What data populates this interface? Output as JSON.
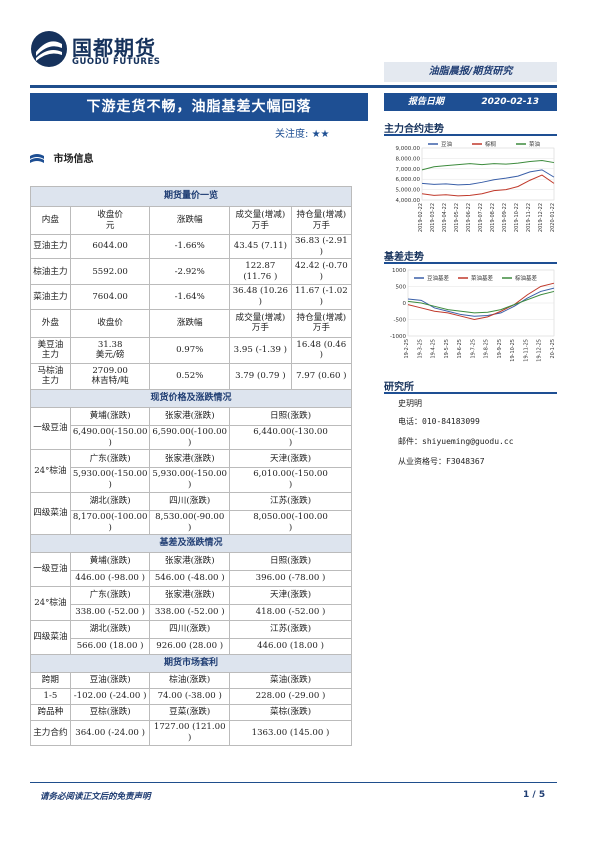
{
  "brand": {
    "name_cn": "国都期货",
    "name_en": "GUODU FUTURES"
  },
  "series_label": "油脂晨报/期货研究",
  "title": "下游走货不畅，油脂基差大幅回落",
  "report_date": {
    "label": "报告日期",
    "value": "2020-02-13"
  },
  "attention": {
    "label": "关注度:",
    "stars": "★★"
  },
  "section_title": "市场信息",
  "futures_table": {
    "title": "期货量价一览",
    "domestic_header": [
      "内盘",
      "收盘价\n元",
      "涨跌幅",
      "成交量(增减)\n万手",
      "持仓量(增减)\n万手"
    ],
    "domestic_rows": [
      [
        "豆油主力",
        "6044.00",
        "-1.66%",
        "43.45 (7.11)",
        "36.83 (-2.91 )"
      ],
      [
        "棕油主力",
        "5592.00",
        "-2.92%",
        "122.87\n(11.76 )",
        "42.42 (-0.70 )"
      ],
      [
        "菜油主力",
        "7604.00",
        "-1.64%",
        "36.48 (10.26 )",
        "11.67 (-1.02 )"
      ]
    ],
    "foreign_header": [
      "外盘",
      "收盘价",
      "涨跌幅",
      "成交量(增减)\n万手",
      "持仓量(增减)\n万手"
    ],
    "foreign_rows": [
      [
        "美豆油\n主力",
        "31.38\n美元/磅",
        "0.97%",
        "3.95 (-1.39 )",
        "16.48 (0.46 )"
      ],
      [
        "马棕油\n主力",
        "2709.00\n林吉特/吨",
        "0.52%",
        "3.79 (0.79 )",
        "7.97 (0.60 )"
      ]
    ]
  },
  "spot_table": {
    "title": "现货价格及涨跌情况",
    "groups": [
      {
        "name": "一级豆油",
        "regions": [
          "黄埔(涨跌)",
          "张家港(涨跌)",
          "日照(涨跌)"
        ],
        "values": [
          "6,490.00(-150.00 )",
          "6,590.00(-100.00\n)",
          "6,440.00(-130.00\n)"
        ]
      },
      {
        "name": "24°棕油",
        "regions": [
          "广东(涨跌)",
          "张家港(涨跌)",
          "天津(涨跌)"
        ],
        "values": [
          "5,930.00(-150.00 )",
          "5,930.00(-150.00\n)",
          "6,010.00(-150.00\n)"
        ]
      },
      {
        "name": "四级菜油",
        "regions": [
          "湖北(涨跌)",
          "四川(涨跌)",
          "江苏(涨跌)"
        ],
        "values": [
          "8,170.00(-100.00 )",
          "8,530.00(-90.00 )",
          "8,050.00(-100.00\n)"
        ]
      }
    ]
  },
  "basis_table": {
    "title": "基差及涨跌情况",
    "groups": [
      {
        "name": "一级豆油",
        "regions": [
          "黄埔(涨跌)",
          "张家港(涨跌)",
          "日照(涨跌)"
        ],
        "values": [
          "446.00 (-98.00 )",
          "546.00 (-48.00 )",
          "396.00 (-78.00 )"
        ]
      },
      {
        "name": "24°棕油",
        "regions": [
          "广东(涨跌)",
          "张家港(涨跌)",
          "天津(涨跌)"
        ],
        "values": [
          "338.00 (-52.00 )",
          "338.00 (-52.00 )",
          "418.00 (-52.00 )"
        ]
      },
      {
        "name": "四级菜油",
        "regions": [
          "湖北(涨跌)",
          "四川(涨跌)",
          "江苏(涨跌)"
        ],
        "values": [
          "566.00 (18.00 )",
          "926.00 (28.00 )",
          "446.00 (18.00 )"
        ]
      }
    ]
  },
  "spread_table": {
    "title": "期货市场套利",
    "rows": [
      [
        "跨期",
        "豆油(涨跌)",
        "棕油(涨跌)",
        "菜油(涨跌)"
      ],
      [
        "1-5",
        "-102.00 (-24.00 )",
        "74.00 (-38.00 )",
        "228.00  (-29.00 )"
      ],
      [
        "跨品种",
        "豆棕(涨跌)",
        "豆菜(涨跌)",
        "菜棕(涨跌)"
      ],
      [
        "主力合约",
        "364.00 (-24.00 )",
        "1727.00 (121.00 )",
        "1363.00 (145.00 )"
      ]
    ]
  },
  "charts_meta": {
    "main_contract": {
      "title": "主力合约走势",
      "legend": [
        "豆油",
        "棕榈",
        "菜油"
      ]
    },
    "basis": {
      "title": "基差走势",
      "legend": [
        "豆油基差",
        "菜油基差",
        "棕油基差"
      ]
    }
  },
  "chart_data": [
    {
      "type": "line",
      "title": "",
      "x": [
        "2019-02-22",
        "2019-03-22",
        "2019-04-22",
        "2019-05-22",
        "2019-06-22",
        "2019-07-22",
        "2019-08-22",
        "2019-09-22",
        "2019-10-22",
        "2019-11-22",
        "2019-12-22",
        "2020-01-22"
      ],
      "ylim": [
        4000,
        9000
      ],
      "yticks": [
        "4,000.00",
        "5,000.00",
        "6,000.00",
        "7,000.00",
        "8,000.00",
        "9,000.00"
      ],
      "legend_position": "top",
      "series": [
        {
          "name": "豆油",
          "color": "#3a5fa8",
          "values": [
            5600,
            5500,
            5550,
            5450,
            5500,
            5700,
            5950,
            6100,
            6300,
            6700,
            6900,
            6200
          ]
        },
        {
          "name": "棕榈",
          "color": "#c0392b",
          "values": [
            4600,
            4450,
            4500,
            4400,
            4450,
            4600,
            4900,
            5000,
            5300,
            5900,
            6400,
            5600
          ]
        },
        {
          "name": "菜油",
          "color": "#3d8b3d",
          "values": [
            6900,
            7200,
            7300,
            7400,
            7500,
            7400,
            7500,
            7450,
            7550,
            7700,
            7800,
            7600
          ]
        }
      ]
    },
    {
      "type": "line",
      "title": "",
      "x": [
        "19-2-25",
        "19-3-25",
        "19-4-25",
        "19-5-25",
        "19-6-25",
        "19-7-25",
        "19-8-25",
        "19-9-25",
        "19-10-25",
        "19-11-25",
        "19-12-25",
        "20-1-25"
      ],
      "ylim": [
        -1000,
        1000
      ],
      "yticks": [
        "-1000",
        "-500",
        "0",
        "500",
        "1000"
      ],
      "legend_position": "top",
      "series": [
        {
          "name": "豆油基差",
          "color": "#3a5fa8",
          "values": [
            120,
            80,
            -150,
            -250,
            -350,
            -400,
            -380,
            -300,
            -100,
            150,
            350,
            450
          ]
        },
        {
          "name": "菜油基差",
          "color": "#c0392b",
          "values": [
            -50,
            -150,
            -250,
            -300,
            -400,
            -500,
            -420,
            -250,
            -50,
            250,
            500,
            600
          ]
        },
        {
          "name": "棕油基差",
          "color": "#3d8b3d",
          "values": [
            50,
            0,
            -100,
            -200,
            -250,
            -300,
            -280,
            -200,
            -50,
            100,
            250,
            350
          ]
        }
      ]
    }
  ],
  "research": {
    "title": "研究所",
    "name": "史玥明",
    "phone": "电话：010-84183099",
    "email": "邮件：shiyueming@guodu.cc",
    "license": "从业资格号：F3048367"
  },
  "footer": {
    "disclaimer": "请务必阅读正文后的免责声明",
    "page": "1 / 5"
  }
}
